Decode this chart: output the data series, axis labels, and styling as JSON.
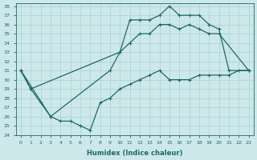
{
  "bg_color": "#cce8ea",
  "grid_color": "#b0d4d8",
  "line_color": "#1a6b65",
  "xlabel": "Humidex (Indice chaleur)",
  "xmin": 0,
  "xmax": 23,
  "ymin": 24,
  "ymax": 38,
  "line1_x": [
    0,
    1,
    10,
    11,
    12,
    13,
    14,
    15,
    16,
    17,
    18,
    19,
    20,
    21,
    23
  ],
  "line1_y": [
    31,
    29,
    33,
    36.5,
    36.5,
    36.5,
    37,
    38,
    37,
    37,
    37,
    36,
    35.5,
    31,
    31
  ],
  "line2_x": [
    0,
    3,
    9,
    10,
    11,
    12,
    13,
    14,
    15,
    16,
    17,
    18,
    19,
    20,
    23
  ],
  "line2_y": [
    31,
    26,
    31,
    33,
    34,
    35,
    35,
    36,
    36,
    35.5,
    36,
    35.5,
    35,
    35,
    31
  ],
  "line3_x": [
    0,
    1,
    2,
    3,
    4,
    5,
    6,
    7,
    8,
    9,
    10,
    11,
    12,
    13,
    14,
    15,
    16,
    17,
    18,
    19,
    20,
    21,
    22,
    23
  ],
  "line3_y": [
    31,
    29,
    27.5,
    26,
    25.5,
    25.5,
    25,
    24.5,
    27.5,
    28,
    29,
    29.5,
    30,
    30.5,
    31,
    30,
    30,
    30,
    30.5,
    30.5,
    30.5,
    30.5,
    31,
    31
  ]
}
